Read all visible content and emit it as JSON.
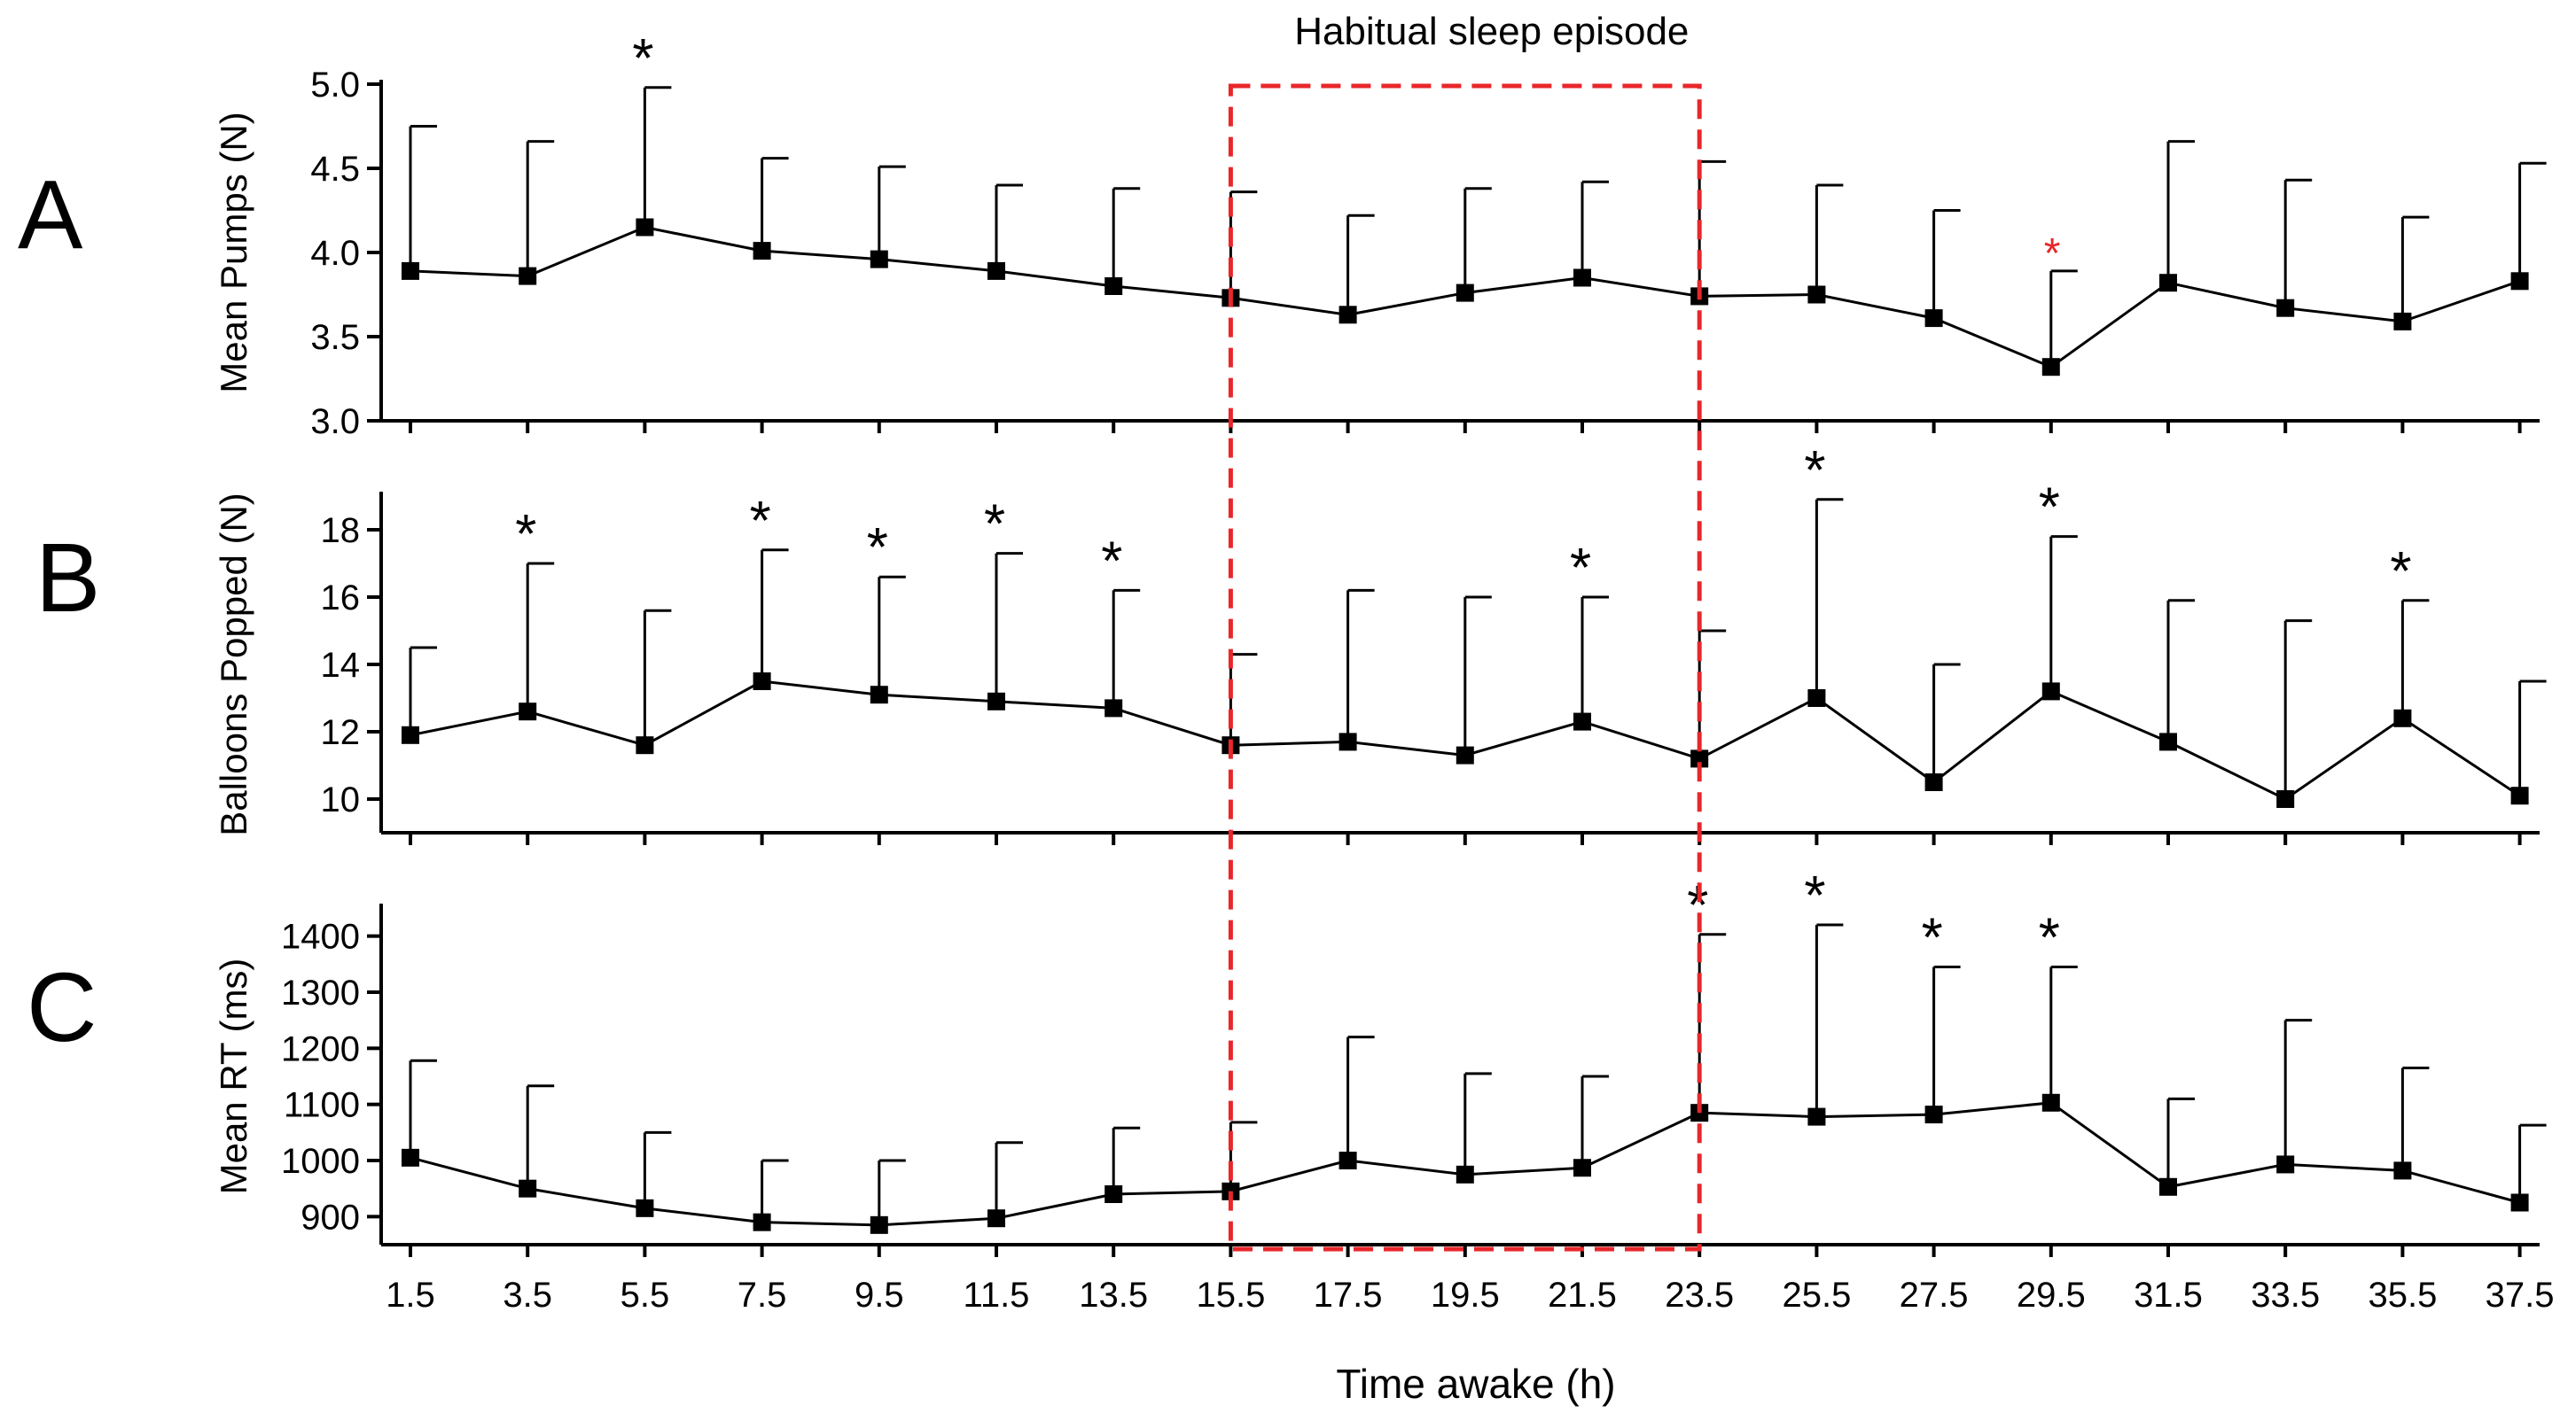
{
  "title": "Habitual sleep episode",
  "xlabel": "Time awake (h)",
  "colors": {
    "line": "#000000",
    "sleep_box": "#e8272b",
    "highlight_star": "#e8272b"
  },
  "chart_data": [
    {
      "type": "line",
      "panel": "A",
      "ylabel": "Mean Pumps (N)",
      "ylim": [
        3.0,
        5.0
      ],
      "yticks": [
        "3.0",
        "3.5",
        "4.0",
        "4.5",
        "5.0"
      ],
      "x": [
        1.5,
        3.5,
        5.5,
        7.5,
        9.5,
        11.5,
        13.5,
        15.5,
        17.5,
        19.5,
        21.5,
        23.5,
        25.5,
        27.5,
        29.5,
        31.5,
        33.5,
        35.5,
        37.5
      ],
      "values": [
        3.89,
        3.86,
        4.15,
        4.01,
        3.96,
        3.89,
        3.8,
        3.73,
        3.63,
        3.76,
        3.85,
        3.74,
        3.75,
        3.61,
        3.32,
        3.82,
        3.67,
        3.59,
        3.83
      ],
      "error_upper": [
        4.75,
        4.66,
        4.98,
        4.56,
        4.51,
        4.4,
        4.38,
        4.36,
        4.22,
        4.38,
        4.42,
        4.54,
        4.4,
        4.25,
        3.89,
        4.66,
        4.43,
        4.21,
        4.53
      ],
      "significance": [
        "",
        "",
        "*",
        "",
        "",
        "",
        "",
        "",
        "",
        "",
        "",
        "",
        "",
        "",
        "*",
        "",
        "",
        "",
        ""
      ],
      "highlight_index": 14
    },
    {
      "type": "line",
      "panel": "B",
      "ylabel": "Balloons Popped (N)",
      "ylim": [
        9,
        19
      ],
      "yticks": [
        "10",
        "12",
        "14",
        "16",
        "18"
      ],
      "x": [
        1.5,
        3.5,
        5.5,
        7.5,
        9.5,
        11.5,
        13.5,
        15.5,
        17.5,
        19.5,
        21.5,
        23.5,
        25.5,
        27.5,
        29.5,
        31.5,
        33.5,
        35.5,
        37.5
      ],
      "values": [
        11.9,
        12.6,
        11.6,
        13.5,
        13.1,
        12.9,
        12.7,
        11.6,
        11.7,
        11.3,
        12.3,
        11.2,
        13.0,
        10.5,
        13.2,
        11.7,
        10.0,
        12.4,
        10.1
      ],
      "error_upper": [
        14.5,
        17.0,
        15.6,
        17.4,
        16.6,
        17.3,
        16.2,
        14.3,
        16.2,
        16.0,
        16.0,
        15.0,
        18.9,
        14.0,
        17.8,
        15.9,
        15.3,
        15.9,
        13.5
      ],
      "significance": [
        "",
        "*",
        "",
        "*",
        "*",
        "*",
        "*",
        "",
        "",
        "",
        "*",
        "",
        "*",
        "",
        "*",
        "",
        "",
        "*",
        ""
      ]
    },
    {
      "type": "line",
      "panel": "C",
      "ylabel": "Mean RT (ms)",
      "ylim": [
        850,
        1450
      ],
      "yticks": [
        "900",
        "1000",
        "1100",
        "1200",
        "1300",
        "1400"
      ],
      "x": [
        1.5,
        3.5,
        5.5,
        7.5,
        9.5,
        11.5,
        13.5,
        15.5,
        17.5,
        19.5,
        21.5,
        23.5,
        25.5,
        27.5,
        29.5,
        31.5,
        33.5,
        35.5,
        37.5
      ],
      "xticks": [
        "1.5",
        "3.5",
        "5.5",
        "7.5",
        "9.5",
        "11.5",
        "13.5",
        "15.5",
        "17.5",
        "19.5",
        "21.5",
        "23.5",
        "25.5",
        "27.5",
        "29.5",
        "31.5",
        "33.5",
        "35.5",
        "37.5"
      ],
      "values": [
        1005,
        950,
        915,
        890,
        885,
        897,
        940,
        945,
        1000,
        975,
        987,
        1085,
        1078,
        1082,
        1103,
        953,
        993,
        982,
        925
      ],
      "error_upper": [
        1178,
        1133,
        1050,
        1000,
        1000,
        1032,
        1058,
        1068,
        1220,
        1155,
        1150,
        1403,
        1420,
        1345,
        1345,
        1110,
        1250,
        1165,
        1063
      ],
      "significance": [
        "",
        "",
        "",
        "",
        "",
        "",
        "",
        "",
        "",
        "",
        "",
        "*",
        "*",
        "*",
        "*",
        "",
        "",
        "",
        ""
      ]
    }
  ],
  "sleep_window": {
    "start": 15.5,
    "end": 23.5
  }
}
